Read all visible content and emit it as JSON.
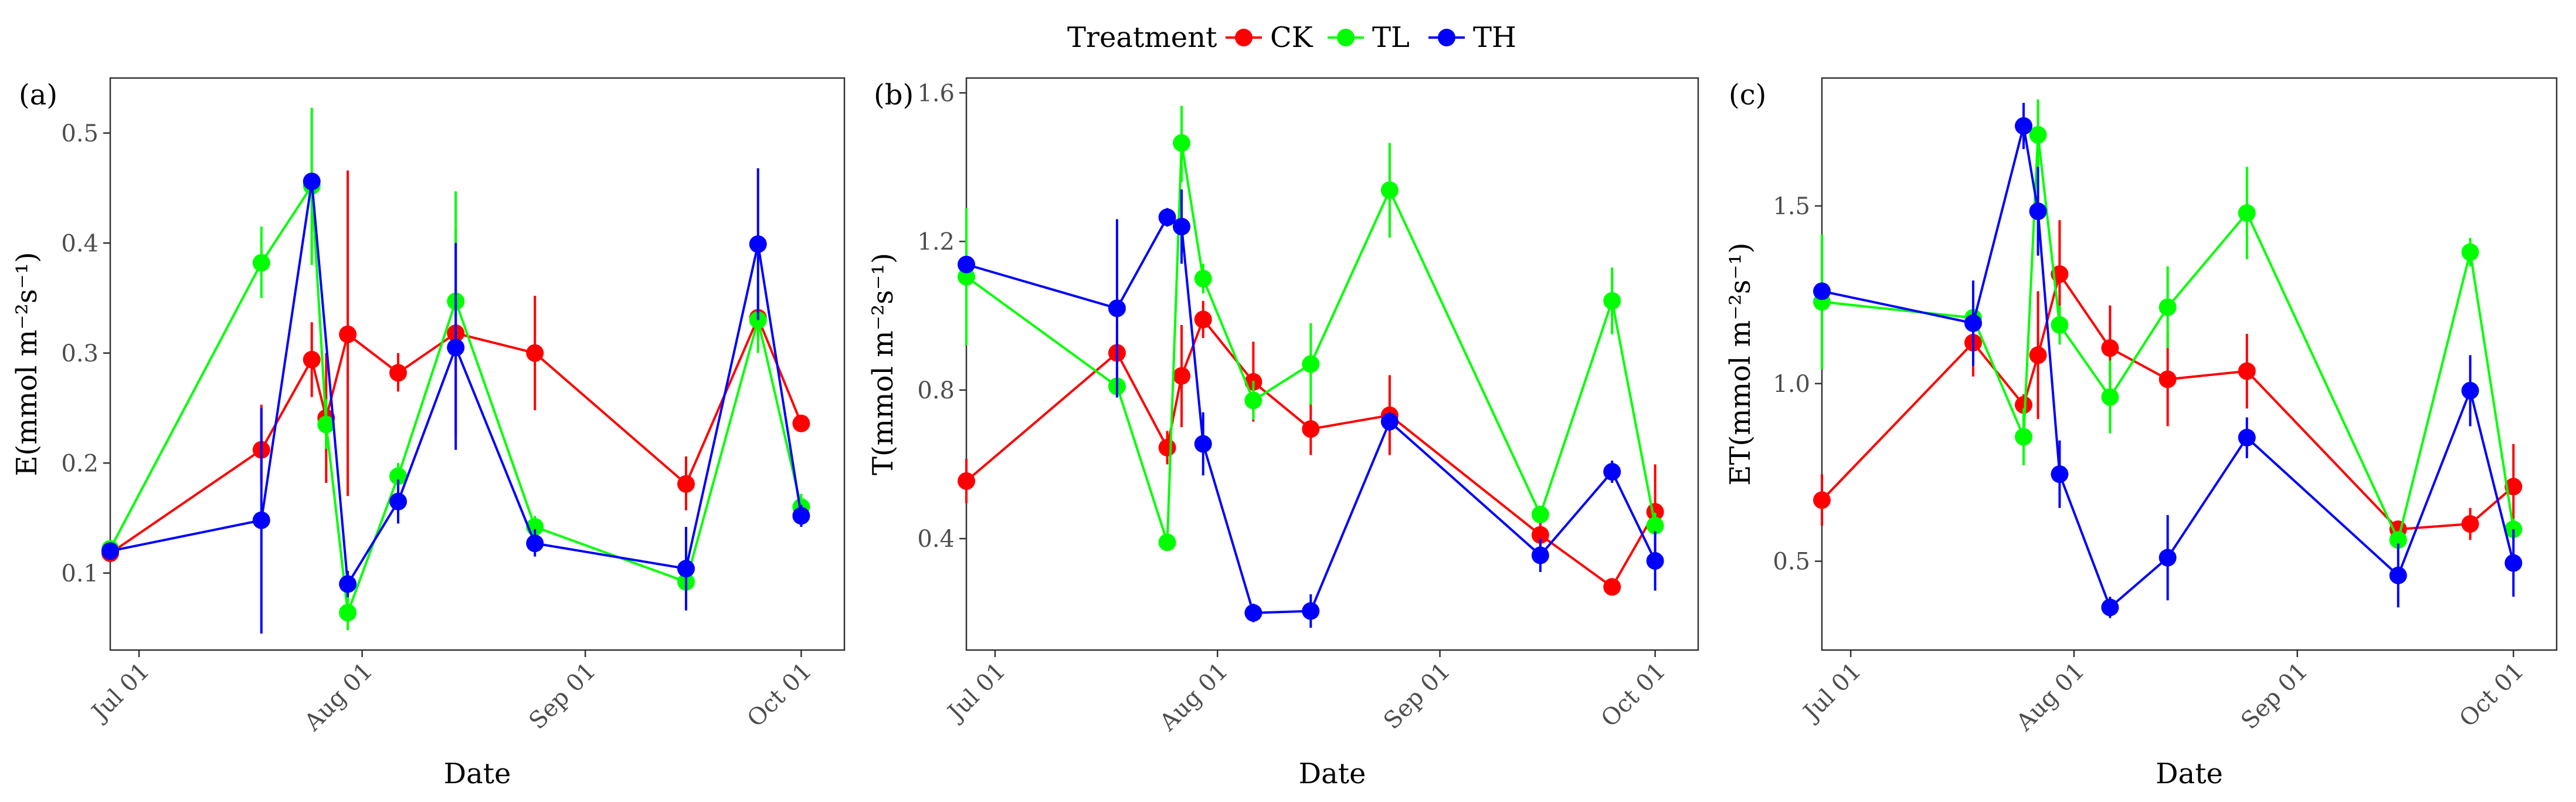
{
  "legend": {
    "title": "Treatment",
    "entries": [
      {
        "name": "CK",
        "color": "#ff0000"
      },
      {
        "name": "TL",
        "color": "#00ff00"
      },
      {
        "name": "TH",
        "color": "#0000ff"
      }
    ]
  },
  "chart_data": [
    {
      "type": "line",
      "panel_label": "(a)",
      "title": "",
      "xlabel": "Date",
      "ylabel": "E(mmol m⁻²s⁻¹)",
      "xlim": [
        0,
        102
      ],
      "ylim": [
        0.03,
        0.55
      ],
      "xticks": [
        {
          "label": "Jul 01",
          "value": 4
        },
        {
          "label": "Aug 01",
          "value": 35
        },
        {
          "label": "Sep 01",
          "value": 66
        },
        {
          "label": "Oct 01",
          "value": 96
        }
      ],
      "yticks": [
        {
          "label": "0.1",
          "value": 0.1
        },
        {
          "label": "0.2",
          "value": 0.2
        },
        {
          "label": "0.3",
          "value": 0.3
        },
        {
          "label": "0.4",
          "value": 0.4
        },
        {
          "label": "0.5",
          "value": 0.5
        }
      ],
      "series": [
        {
          "name": "CK",
          "color": "#ff0000",
          "points": [
            {
              "x": 0,
              "y": 0.118,
              "lo": 0.11,
              "hi": 0.128
            },
            {
              "x": 21,
              "y": 0.212,
              "lo": 0.18,
              "hi": 0.253
            },
            {
              "x": 28,
              "y": 0.294,
              "lo": 0.26,
              "hi": 0.328
            },
            {
              "x": 30,
              "y": 0.241,
              "lo": 0.182,
              "hi": 0.3
            },
            {
              "x": 33,
              "y": 0.317,
              "lo": 0.17,
              "hi": 0.466
            },
            {
              "x": 40,
              "y": 0.282,
              "lo": 0.265,
              "hi": 0.3
            },
            {
              "x": 48,
              "y": 0.318,
              "lo": 0.225,
              "hi": 0.413
            },
            {
              "x": 59,
              "y": 0.3,
              "lo": 0.248,
              "hi": 0.352
            },
            {
              "x": 80,
              "y": 0.181,
              "lo": 0.157,
              "hi": 0.206
            },
            {
              "x": 90,
              "y": 0.332,
              "lo": 0.315,
              "hi": 0.348
            },
            {
              "x": 96,
              "y": 0.236,
              "lo": 0.232,
              "hi": 0.24
            }
          ]
        },
        {
          "name": "TL",
          "color": "#00ff00",
          "points": [
            {
              "x": 0,
              "y": 0.122,
              "lo": 0.115,
              "hi": 0.13
            },
            {
              "x": 21,
              "y": 0.382,
              "lo": 0.35,
              "hi": 0.415
            },
            {
              "x": 28,
              "y": 0.452,
              "lo": 0.38,
              "hi": 0.523
            },
            {
              "x": 30,
              "y": 0.235,
              "lo": 0.213,
              "hi": 0.258
            },
            {
              "x": 33,
              "y": 0.064,
              "lo": 0.048,
              "hi": 0.08
            },
            {
              "x": 40,
              "y": 0.188,
              "lo": 0.175,
              "hi": 0.2
            },
            {
              "x": 48,
              "y": 0.347,
              "lo": 0.3,
              "hi": 0.447
            },
            {
              "x": 59,
              "y": 0.142,
              "lo": 0.132,
              "hi": 0.152
            },
            {
              "x": 80,
              "y": 0.092,
              "lo": 0.085,
              "hi": 0.1
            },
            {
              "x": 90,
              "y": 0.33,
              "lo": 0.3,
              "hi": 0.36
            },
            {
              "x": 96,
              "y": 0.16,
              "lo": 0.148,
              "hi": 0.172
            }
          ]
        },
        {
          "name": "TH",
          "color": "#0000ff",
          "points": [
            {
              "x": 0,
              "y": 0.12,
              "lo": 0.115,
              "hi": 0.125
            },
            {
              "x": 21,
              "y": 0.148,
              "lo": 0.045,
              "hi": 0.25
            },
            {
              "x": 28,
              "y": 0.456,
              "lo": 0.45,
              "hi": 0.462
            },
            {
              "x": 33,
              "y": 0.09,
              "lo": 0.078,
              "hi": 0.102
            },
            {
              "x": 40,
              "y": 0.165,
              "lo": 0.145,
              "hi": 0.185
            },
            {
              "x": 48,
              "y": 0.305,
              "lo": 0.212,
              "hi": 0.4
            },
            {
              "x": 59,
              "y": 0.127,
              "lo": 0.115,
              "hi": 0.14
            },
            {
              "x": 80,
              "y": 0.104,
              "lo": 0.066,
              "hi": 0.142
            },
            {
              "x": 90,
              "y": 0.399,
              "lo": 0.33,
              "hi": 0.468
            },
            {
              "x": 96,
              "y": 0.152,
              "lo": 0.142,
              "hi": 0.162
            }
          ]
        }
      ]
    },
    {
      "type": "line",
      "panel_label": "(b)",
      "title": "",
      "xlabel": "Date",
      "ylabel": "T(mmol m⁻²s⁻¹)",
      "xlim": [
        0,
        102
      ],
      "ylim": [
        0.1,
        1.64
      ],
      "xticks": [
        {
          "label": "Jul 01",
          "value": 4
        },
        {
          "label": "Aug 01",
          "value": 35
        },
        {
          "label": "Sep 01",
          "value": 66
        },
        {
          "label": "Oct 01",
          "value": 96
        }
      ],
      "yticks": [
        {
          "label": "0.4",
          "value": 0.4
        },
        {
          "label": "0.8",
          "value": 0.8
        },
        {
          "label": "1.2",
          "value": 1.2
        },
        {
          "label": "1.6",
          "value": 1.6
        }
      ],
      "series": [
        {
          "name": "CK",
          "color": "#ff0000",
          "points": [
            {
              "x": 0,
              "y": 0.555,
              "lo": 0.495,
              "hi": 0.615
            },
            {
              "x": 21,
              "y": 0.9,
              "lo": 0.82,
              "hi": 0.98
            },
            {
              "x": 28,
              "y": 0.645,
              "lo": 0.6,
              "hi": 0.69
            },
            {
              "x": 30,
              "y": 0.838,
              "lo": 0.7,
              "hi": 0.975
            },
            {
              "x": 33,
              "y": 0.99,
              "lo": 0.94,
              "hi": 1.04
            },
            {
              "x": 40,
              "y": 0.822,
              "lo": 0.715,
              "hi": 0.93
            },
            {
              "x": 48,
              "y": 0.695,
              "lo": 0.625,
              "hi": 0.765
            },
            {
              "x": 59,
              "y": 0.732,
              "lo": 0.625,
              "hi": 0.84
            },
            {
              "x": 80,
              "y": 0.41,
              "lo": 0.375,
              "hi": 0.445
            },
            {
              "x": 90,
              "y": 0.27,
              "lo": 0.26,
              "hi": 0.28
            },
            {
              "x": 96,
              "y": 0.472,
              "lo": 0.34,
              "hi": 0.6
            }
          ]
        },
        {
          "name": "TL",
          "color": "#00ff00",
          "points": [
            {
              "x": 0,
              "y": 1.105,
              "lo": 0.92,
              "hi": 1.29
            },
            {
              "x": 21,
              "y": 0.81,
              "lo": 0.78,
              "hi": 0.84
            },
            {
              "x": 28,
              "y": 0.39,
              "lo": 0.38,
              "hi": 0.4
            },
            {
              "x": 30,
              "y": 1.465,
              "lo": 1.36,
              "hi": 1.565
            },
            {
              "x": 33,
              "y": 1.1,
              "lo": 1.06,
              "hi": 1.14
            },
            {
              "x": 40,
              "y": 0.772,
              "lo": 0.72,
              "hi": 0.825
            },
            {
              "x": 48,
              "y": 0.87,
              "lo": 0.76,
              "hi": 0.98
            },
            {
              "x": 59,
              "y": 1.338,
              "lo": 1.21,
              "hi": 1.465
            },
            {
              "x": 80,
              "y": 0.465,
              "lo": 0.445,
              "hi": 0.485
            },
            {
              "x": 90,
              "y": 1.04,
              "lo": 0.95,
              "hi": 1.13
            },
            {
              "x": 96,
              "y": 0.435,
              "lo": 0.4,
              "hi": 0.47
            }
          ]
        },
        {
          "name": "TH",
          "color": "#0000ff",
          "points": [
            {
              "x": 0,
              "y": 1.138,
              "lo": 1.12,
              "hi": 1.155
            },
            {
              "x": 21,
              "y": 1.02,
              "lo": 0.78,
              "hi": 1.26
            },
            {
              "x": 28,
              "y": 1.265,
              "lo": 1.24,
              "hi": 1.29
            },
            {
              "x": 30,
              "y": 1.24,
              "lo": 1.14,
              "hi": 1.34
            },
            {
              "x": 33,
              "y": 0.655,
              "lo": 0.57,
              "hi": 0.74
            },
            {
              "x": 40,
              "y": 0.2,
              "lo": 0.175,
              "hi": 0.225
            },
            {
              "x": 48,
              "y": 0.205,
              "lo": 0.16,
              "hi": 0.25
            },
            {
              "x": 59,
              "y": 0.715,
              "lo": 0.69,
              "hi": 0.74
            },
            {
              "x": 80,
              "y": 0.355,
              "lo": 0.31,
              "hi": 0.4
            },
            {
              "x": 90,
              "y": 0.58,
              "lo": 0.55,
              "hi": 0.61
            },
            {
              "x": 96,
              "y": 0.34,
              "lo": 0.26,
              "hi": 0.42
            }
          ]
        }
      ]
    },
    {
      "type": "line",
      "panel_label": "(c)",
      "title": "",
      "xlabel": "Date",
      "ylabel": "ET(mmol m⁻²s⁻¹)",
      "xlim": [
        0,
        102
      ],
      "ylim": [
        0.25,
        1.86
      ],
      "xticks": [
        {
          "label": "Jul 01",
          "value": 4
        },
        {
          "label": "Aug 01",
          "value": 35
        },
        {
          "label": "Sep 01",
          "value": 66
        },
        {
          "label": "Oct 01",
          "value": 96
        }
      ],
      "yticks": [
        {
          "label": "0.5",
          "value": 0.5
        },
        {
          "label": "1.0",
          "value": 1.0
        },
        {
          "label": "1.5",
          "value": 1.5
        }
      ],
      "series": [
        {
          "name": "CK",
          "color": "#ff0000",
          "points": [
            {
              "x": 0,
              "y": 0.672,
              "lo": 0.6,
              "hi": 0.745
            },
            {
              "x": 21,
              "y": 1.115,
              "lo": 1.02,
              "hi": 1.21
            },
            {
              "x": 28,
              "y": 0.94,
              "lo": 0.91,
              "hi": 0.97
            },
            {
              "x": 30,
              "y": 1.08,
              "lo": 0.9,
              "hi": 1.26
            },
            {
              "x": 33,
              "y": 1.308,
              "lo": 1.15,
              "hi": 1.46
            },
            {
              "x": 40,
              "y": 1.1,
              "lo": 0.98,
              "hi": 1.22
            },
            {
              "x": 48,
              "y": 1.012,
              "lo": 0.88,
              "hi": 1.145
            },
            {
              "x": 59,
              "y": 1.035,
              "lo": 0.93,
              "hi": 1.14
            },
            {
              "x": 80,
              "y": 0.59,
              "lo": 0.57,
              "hi": 0.61
            },
            {
              "x": 90,
              "y": 0.605,
              "lo": 0.56,
              "hi": 0.65
            },
            {
              "x": 96,
              "y": 0.71,
              "lo": 0.59,
              "hi": 0.83
            }
          ]
        },
        {
          "name": "TL",
          "color": "#00ff00",
          "points": [
            {
              "x": 0,
              "y": 1.23,
              "lo": 1.04,
              "hi": 1.42
            },
            {
              "x": 21,
              "y": 1.185,
              "lo": 1.15,
              "hi": 1.22
            },
            {
              "x": 28,
              "y": 0.85,
              "lo": 0.77,
              "hi": 0.93
            },
            {
              "x": 30,
              "y": 1.7,
              "lo": 1.6,
              "hi": 1.8
            },
            {
              "x": 33,
              "y": 1.165,
              "lo": 1.11,
              "hi": 1.22
            },
            {
              "x": 40,
              "y": 0.962,
              "lo": 0.86,
              "hi": 1.065
            },
            {
              "x": 48,
              "y": 1.215,
              "lo": 1.1,
              "hi": 1.33
            },
            {
              "x": 59,
              "y": 1.48,
              "lo": 1.35,
              "hi": 1.61
            },
            {
              "x": 80,
              "y": 0.56,
              "lo": 0.545,
              "hi": 0.575
            },
            {
              "x": 90,
              "y": 1.37,
              "lo": 1.33,
              "hi": 1.41
            },
            {
              "x": 96,
              "y": 0.59,
              "lo": 0.56,
              "hi": 0.62
            }
          ]
        },
        {
          "name": "TH",
          "color": "#0000ff",
          "points": [
            {
              "x": 0,
              "y": 1.26,
              "lo": 1.24,
              "hi": 1.28
            },
            {
              "x": 21,
              "y": 1.17,
              "lo": 1.05,
              "hi": 1.29
            },
            {
              "x": 28,
              "y": 1.725,
              "lo": 1.66,
              "hi": 1.79
            },
            {
              "x": 30,
              "y": 1.485,
              "lo": 1.36,
              "hi": 1.61
            },
            {
              "x": 33,
              "y": 0.745,
              "lo": 0.65,
              "hi": 0.84
            },
            {
              "x": 40,
              "y": 0.37,
              "lo": 0.34,
              "hi": 0.4
            },
            {
              "x": 48,
              "y": 0.51,
              "lo": 0.39,
              "hi": 0.63
            },
            {
              "x": 59,
              "y": 0.848,
              "lo": 0.79,
              "hi": 0.905
            },
            {
              "x": 80,
              "y": 0.46,
              "lo": 0.37,
              "hi": 0.55
            },
            {
              "x": 90,
              "y": 0.98,
              "lo": 0.88,
              "hi": 1.08
            },
            {
              "x": 96,
              "y": 0.495,
              "lo": 0.4,
              "hi": 0.59
            }
          ]
        }
      ]
    }
  ]
}
